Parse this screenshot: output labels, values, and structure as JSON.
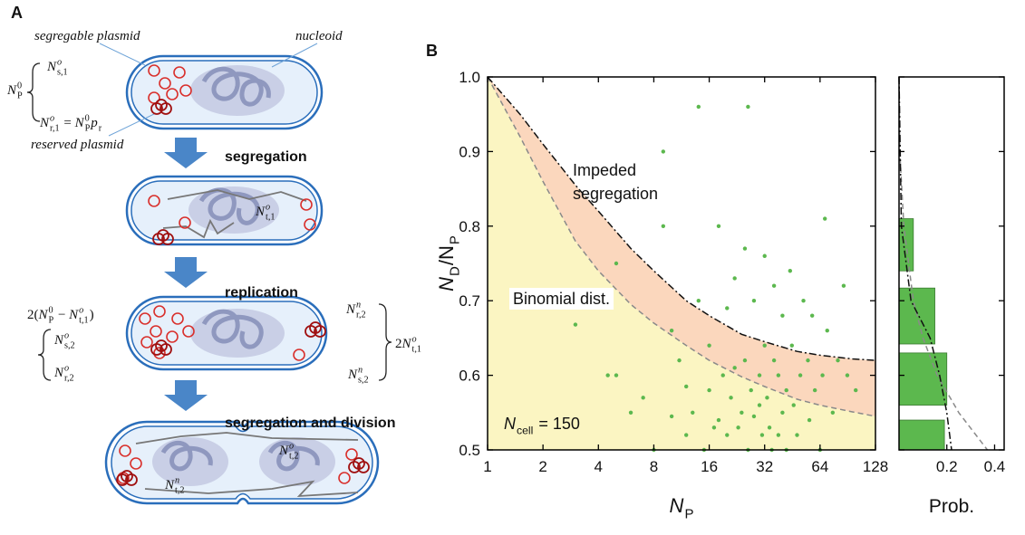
{
  "panel_a": {
    "letter": "A",
    "labels": [
      "segregable plasmid",
      "nucleoid",
      "reserved plasmid"
    ],
    "steps": [
      "segregation",
      "replication",
      "segregation and division"
    ],
    "math": [
      [
        {
          "b": "N",
          "sup": "0",
          "sub": "P"
        }
      ],
      [
        {
          "b": "N",
          "sup": "o",
          "sub": "s,1"
        }
      ],
      [
        {
          "b": "N",
          "sup": "o",
          "sub": "r,1"
        },
        {
          "b": " = "
        },
        {
          "b": "N",
          "sup": "0",
          "sub": "P"
        },
        {
          "b": "p",
          "sub": "r"
        }
      ],
      [
        {
          "b": "N",
          "sup": "o",
          "sub": "t,1"
        }
      ],
      [
        {
          "b": "2("
        },
        {
          "b": "N",
          "sup": "0",
          "sub": "P"
        },
        {
          "b": " − "
        },
        {
          "b": "N",
          "sup": "o",
          "sub": "t,1"
        },
        {
          "b": ")"
        }
      ],
      [
        {
          "b": "N",
          "sup": "o",
          "sub": "s,2"
        }
      ],
      [
        {
          "b": "N",
          "sup": "o",
          "sub": "r,2"
        }
      ],
      [
        {
          "b": "N",
          "sup": "n",
          "sub": "r,2"
        }
      ],
      [
        {
          "b": "N",
          "sup": "n",
          "sub": "s,2"
        }
      ],
      [
        {
          "b": "2"
        },
        {
          "b": "N",
          "sup": "o",
          "sub": "t,1"
        }
      ],
      [
        {
          "b": "N",
          "sup": "o",
          "sub": "t,2"
        }
      ],
      [
        {
          "b": "N",
          "sup": "n",
          "sub": "t,2"
        }
      ]
    ]
  },
  "panel_b_letter": "B",
  "chart_data": [
    {
      "type": "scatter",
      "log_base": 2,
      "xlim": [
        1,
        128
      ],
      "ylim": [
        0.5,
        1
      ],
      "xticks": [
        1,
        2,
        4,
        8,
        16,
        32,
        64,
        128
      ],
      "yticks": [
        0.5,
        0.6,
        0.7,
        0.8,
        0.9,
        {
          "value": 1,
          "label": "1.0"
        }
      ],
      "xlabel": [
        {
          "b": "N",
          "sub": "P"
        }
      ],
      "ylabel": [
        {
          "b": "N",
          "sub": "D"
        },
        {
          "b": "/N",
          "sub": "P"
        }
      ],
      "annotation": [
        {
          "b": "N",
          "sub": "cell"
        },
        {
          "b": " = 150"
        }
      ],
      "points": {
        "color": "#5cb84e",
        "x": [
          3,
          4.5,
          5,
          5,
          6,
          7,
          8,
          9,
          9,
          10,
          10,
          11,
          12,
          12,
          13,
          14,
          14,
          15,
          16,
          16,
          17,
          18,
          18,
          19,
          20,
          20,
          21,
          22,
          22,
          23,
          24,
          25,
          25,
          26,
          26,
          27,
          28,
          28,
          30,
          30,
          31,
          32,
          32,
          33,
          34,
          35,
          36,
          36,
          38,
          38,
          40,
          40,
          42,
          42,
          44,
          45,
          46,
          48,
          50,
          52,
          55,
          56,
          58,
          60,
          64,
          66,
          68,
          70,
          75,
          80,
          86,
          90,
          100
        ],
        "y": [
          0.668,
          0.6,
          0.6,
          0.75,
          0.55,
          0.57,
          0.5,
          0.9,
          0.8,
          0.66,
          0.545,
          0.62,
          0.52,
          0.585,
          0.55,
          0.96,
          0.7,
          0.5,
          0.58,
          0.64,
          0.53,
          0.8,
          0.54,
          0.6,
          0.69,
          0.52,
          0.57,
          0.73,
          0.61,
          0.53,
          0.55,
          0.77,
          0.62,
          0.96,
          0.5,
          0.58,
          0.7,
          0.545,
          0.56,
          0.6,
          0.52,
          0.76,
          0.64,
          0.57,
          0.53,
          0.5,
          0.72,
          0.62,
          0.6,
          0.52,
          0.55,
          0.68,
          0.58,
          0.5,
          0.74,
          0.64,
          0.56,
          0.52,
          0.6,
          0.7,
          0.62,
          0.54,
          0.68,
          0.58,
          0.5,
          0.6,
          0.81,
          0.66,
          0.55,
          0.62,
          0.72,
          0.6,
          0.58
        ]
      },
      "curves": [
        {
          "label": [
            "Binomial dist."
          ],
          "color": "#8a8a8a",
          "dash": "dashed",
          "fill": "#fbf5c2",
          "x": [
            1,
            1.5,
            2,
            3,
            4,
            6,
            8,
            12,
            16,
            24,
            32,
            48,
            64,
            96,
            128
          ],
          "y": [
            1,
            0.92,
            0.86,
            0.78,
            0.74,
            0.695,
            0.67,
            0.64,
            0.62,
            0.598,
            0.585,
            0.568,
            0.56,
            0.551,
            0.545
          ]
        },
        {
          "label": [
            "Impeded",
            "segregation"
          ],
          "color": "#111111",
          "dash": "dashdot",
          "fill": "#fbd7bd",
          "x": [
            1,
            1.5,
            2,
            3,
            4,
            6,
            8,
            12,
            16,
            24,
            32,
            48,
            64,
            96,
            128
          ],
          "y": [
            1,
            0.95,
            0.91,
            0.855,
            0.82,
            0.77,
            0.74,
            0.7,
            0.68,
            0.655,
            0.645,
            0.632,
            0.627,
            0.622,
            0.62
          ]
        }
      ]
    },
    {
      "type": "histogram",
      "orientation": "horizontal",
      "color": "#5cb84e",
      "xlabel": "Prob.",
      "xlim": [
        0,
        0.44
      ],
      "xticks": [
        0.2,
        0.4
      ],
      "ylim": [
        0.5,
        1
      ],
      "yticks": [
        0.5,
        0.6,
        0.7,
        0.8,
        0.9,
        1
      ],
      "bins": [
        0.5,
        0.54,
        0.56,
        0.63,
        0.642,
        0.717,
        0.74,
        0.81
      ],
      "values": [
        0.19,
        0,
        0.2,
        0,
        0.15,
        0,
        0.06
      ],
      "curves": [
        {
          "color": "#8a8a8a",
          "dash": "dashed",
          "y": [
            1,
            0.9,
            0.8,
            0.7,
            0.65,
            0.6,
            0.55,
            0.5
          ],
          "x": [
            0,
            0.003,
            0.02,
            0.06,
            0.1,
            0.16,
            0.25,
            0.37
          ]
        },
        {
          "color": "#111111",
          "dash": "dashdot",
          "y": [
            1,
            0.9,
            0.8,
            0.7,
            0.65,
            0.6,
            0.55,
            0.5
          ],
          "x": [
            0,
            0.005,
            0.01,
            0.05,
            0.13,
            0.17,
            0.2,
            0.22
          ]
        }
      ]
    }
  ]
}
